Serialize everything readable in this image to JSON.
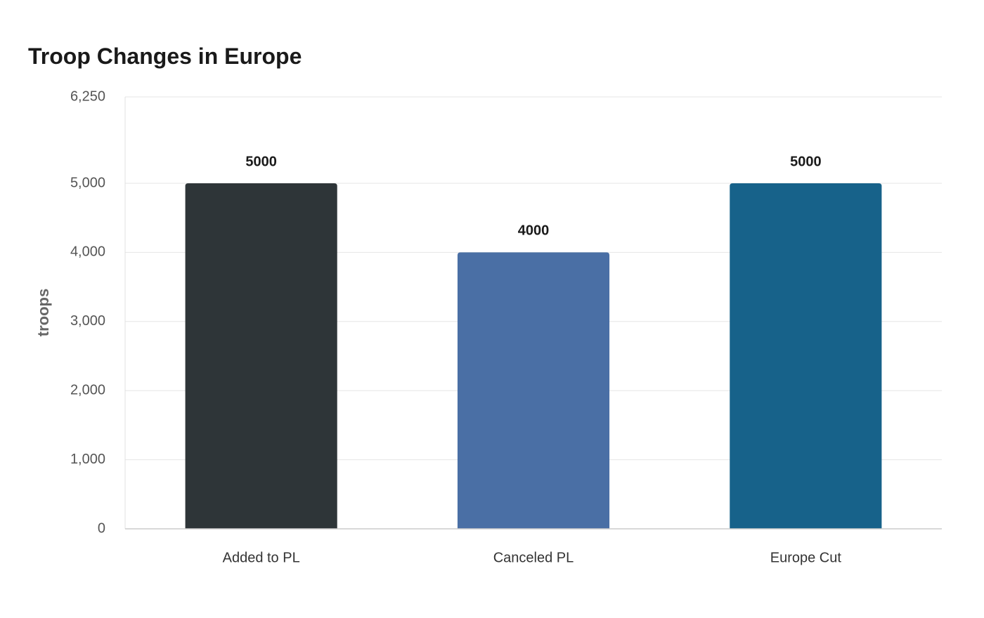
{
  "chart_data": {
    "type": "bar",
    "title": "Troop Changes in Europe",
    "y_label": "troops",
    "categories": [
      "Added to PL",
      "Canceled PL",
      "Europe Cut"
    ],
    "values": [
      5000,
      4000,
      5000
    ],
    "colors": [
      "#2e3538",
      "#4a6fa5",
      "#17628a"
    ],
    "ylim": [
      0,
      6250
    ],
    "yticks": [
      0,
      {
        "value": 1000,
        "label": "1,000"
      },
      {
        "value": 2000,
        "label": "2,000"
      },
      {
        "value": 3000,
        "label": "3,000"
      },
      {
        "value": 4000,
        "label": "4,000"
      },
      {
        "value": 5000,
        "label": "5,000"
      },
      {
        "value": 6250,
        "label": "6,250"
      }
    ],
    "grid": true
  }
}
